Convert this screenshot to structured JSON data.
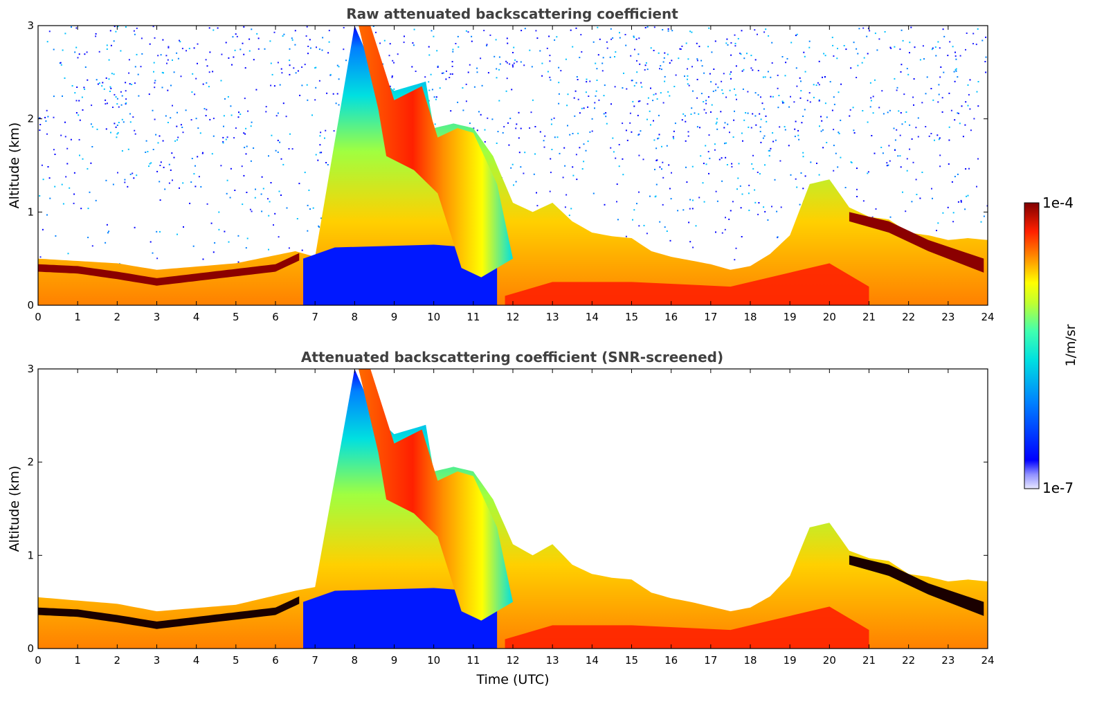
{
  "chart_data": [
    {
      "type": "heatmap",
      "title": "Raw attenuated backscattering coefficient",
      "xlabel": "",
      "ylabel": "Altitude (km)",
      "xlim": [
        0,
        24
      ],
      "ylim": [
        0,
        3
      ],
      "xticks": [
        "0",
        "1",
        "2",
        "3",
        "4",
        "5",
        "6",
        "7",
        "8",
        "9",
        "10",
        "11",
        "12",
        "13",
        "14",
        "15",
        "16",
        "17",
        "18",
        "19",
        "20",
        "21",
        "22",
        "23",
        "24"
      ],
      "yticks": [
        "0",
        "1",
        "2",
        "3"
      ],
      "color_scale": "log",
      "variant": "raw",
      "layer_top_km": [
        [
          0,
          0.5
        ],
        [
          2,
          0.45
        ],
        [
          3,
          0.38
        ],
        [
          5,
          0.45
        ],
        [
          6.5,
          0.58
        ],
        [
          7,
          0.52
        ],
        [
          8,
          3.0
        ],
        [
          8.5,
          2.5
        ],
        [
          9,
          2.3
        ],
        [
          9.8,
          2.4
        ],
        [
          10,
          1.9
        ],
        [
          10.5,
          1.95
        ],
        [
          11,
          1.9
        ],
        [
          11.5,
          1.6
        ],
        [
          12,
          1.1
        ],
        [
          12.5,
          1.0
        ],
        [
          13,
          1.1
        ],
        [
          13.5,
          0.9
        ],
        [
          14,
          0.78
        ],
        [
          14.5,
          0.74
        ],
        [
          15,
          0.72
        ],
        [
          15.5,
          0.58
        ],
        [
          16,
          0.52
        ],
        [
          16.5,
          0.48
        ],
        [
          17,
          0.44
        ],
        [
          17.5,
          0.38
        ],
        [
          18,
          0.42
        ],
        [
          18.5,
          0.55
        ],
        [
          19,
          0.75
        ],
        [
          19.5,
          1.3
        ],
        [
          20,
          1.35
        ],
        [
          20.5,
          1.05
        ],
        [
          21,
          0.95
        ],
        [
          21.5,
          0.92
        ],
        [
          22,
          0.78
        ],
        [
          22.5,
          0.75
        ],
        [
          23,
          0.7
        ],
        [
          23.5,
          0.72
        ],
        [
          24,
          0.7
        ]
      ],
      "red_band_km": [
        [
          0,
          0.4
        ],
        [
          1,
          0.38
        ],
        [
          2,
          0.32
        ],
        [
          3,
          0.25
        ],
        [
          4,
          0.3
        ],
        [
          5,
          0.35
        ],
        [
          6,
          0.4
        ],
        [
          6.6,
          0.52
        ]
      ]
    },
    {
      "type": "heatmap",
      "title": "Attenuated backscattering coefficient (SNR-screened)",
      "xlabel": "Time (UTC)",
      "ylabel": "Altitude (km)",
      "xlim": [
        0,
        24
      ],
      "ylim": [
        0,
        3
      ],
      "xticks": [
        "0",
        "1",
        "2",
        "3",
        "4",
        "5",
        "6",
        "7",
        "8",
        "9",
        "10",
        "11",
        "12",
        "13",
        "14",
        "15",
        "16",
        "17",
        "18",
        "19",
        "20",
        "21",
        "22",
        "23",
        "24"
      ],
      "yticks": [
        "0",
        "1",
        "2",
        "3"
      ],
      "color_scale": "log",
      "variant": "screened",
      "layer_top_km": [
        [
          0,
          0.55
        ],
        [
          2,
          0.48
        ],
        [
          3,
          0.4
        ],
        [
          5,
          0.47
        ],
        [
          6.5,
          0.62
        ],
        [
          7,
          0.66
        ],
        [
          8,
          3.0
        ],
        [
          8.5,
          2.5
        ],
        [
          9,
          2.3
        ],
        [
          9.8,
          2.4
        ],
        [
          10,
          1.9
        ],
        [
          10.5,
          1.95
        ],
        [
          11,
          1.9
        ],
        [
          11.5,
          1.6
        ],
        [
          12,
          1.12
        ],
        [
          12.5,
          1.0
        ],
        [
          13,
          1.12
        ],
        [
          13.5,
          0.9
        ],
        [
          14,
          0.8
        ],
        [
          14.5,
          0.76
        ],
        [
          15,
          0.74
        ],
        [
          15.5,
          0.6
        ],
        [
          16,
          0.54
        ],
        [
          16.5,
          0.5
        ],
        [
          17,
          0.45
        ],
        [
          17.5,
          0.4
        ],
        [
          18,
          0.44
        ],
        [
          18.5,
          0.56
        ],
        [
          19,
          0.78
        ],
        [
          19.5,
          1.3
        ],
        [
          20,
          1.35
        ],
        [
          20.5,
          1.05
        ],
        [
          21,
          0.97
        ],
        [
          21.5,
          0.94
        ],
        [
          22,
          0.8
        ],
        [
          22.5,
          0.77
        ],
        [
          23,
          0.72
        ],
        [
          23.5,
          0.74
        ],
        [
          24,
          0.72
        ]
      ],
      "red_band_km": [
        [
          0,
          0.4
        ],
        [
          1,
          0.38
        ],
        [
          2,
          0.32
        ],
        [
          3,
          0.25
        ],
        [
          4,
          0.3
        ],
        [
          5,
          0.35
        ],
        [
          6,
          0.4
        ],
        [
          6.6,
          0.52
        ]
      ]
    }
  ],
  "colorbar": {
    "label": "1/m/sr",
    "max_label": "1e-4",
    "min_label": "1e-7",
    "colors": [
      "#e8e8ff",
      "#b0b0ff",
      "#4040ff",
      "#0000ff",
      "#0060ff",
      "#00b0ff",
      "#00e0e0",
      "#40ffb0",
      "#a0ff40",
      "#ffff00",
      "#ffa000",
      "#ff3000",
      "#d00000",
      "#800000"
    ]
  }
}
